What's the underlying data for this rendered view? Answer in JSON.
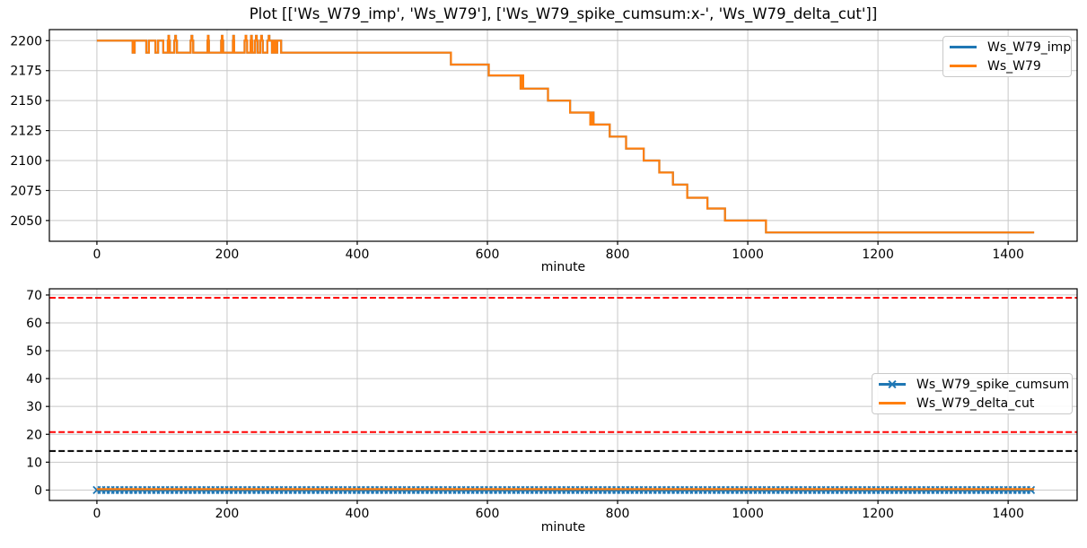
{
  "title": "Plot [['Ws_W79_imp', 'Ws_W79'], ['Ws_W79_spike_cumsum:x-', 'Ws_W79_delta_cut']]",
  "colors": {
    "blue": "#1f77b4",
    "orange": "#ff7f0e",
    "red": "#ff0000",
    "black": "#000000",
    "grid": "#c8c8c8",
    "axis": "#000000",
    "text": "#000000"
  },
  "chart_data": [
    {
      "type": "line",
      "title": "",
      "xlabel": "minute",
      "ylabel": "",
      "xlim": [
        -73,
        1506
      ],
      "ylim": [
        2032.7,
        2209.2
      ],
      "xticks": [
        0,
        200,
        400,
        600,
        800,
        1000,
        1200,
        1400
      ],
      "yticks": [
        2050,
        2075,
        2100,
        2125,
        2150,
        2175,
        2200
      ],
      "grid": true,
      "legend_position": "upper right",
      "series": [
        {
          "name": "Ws_W79_imp",
          "color": "#1f77b4",
          "linewidth": 2.2,
          "points_same_as": "Ws_W79"
        },
        {
          "name": "Ws_W79",
          "color": "#ff7f0e",
          "linewidth": 2.2,
          "points": [
            [
              0,
              2200
            ],
            [
              55,
              2200
            ],
            [
              55,
              2190
            ],
            [
              58,
              2190
            ],
            [
              58,
              2200
            ],
            [
              76,
              2200
            ],
            [
              76,
              2190
            ],
            [
              80,
              2190
            ],
            [
              80,
              2200
            ],
            [
              90,
              2200
            ],
            [
              90,
              2190
            ],
            [
              94,
              2190
            ],
            [
              94,
              2200
            ],
            [
              102,
              2200
            ],
            [
              102,
              2190
            ],
            [
              109,
              2190
            ],
            [
              109,
              2200
            ],
            [
              110,
              2200
            ],
            [
              110,
              2204
            ],
            [
              111,
              2204
            ],
            [
              111,
              2200
            ],
            [
              112,
              2200
            ],
            [
              112,
              2190
            ],
            [
              119,
              2190
            ],
            [
              119,
              2200
            ],
            [
              120.5,
              2200
            ],
            [
              120.5,
              2204
            ],
            [
              121.5,
              2204
            ],
            [
              121.5,
              2200
            ],
            [
              123,
              2200
            ],
            [
              123,
              2190
            ],
            [
              144,
              2190
            ],
            [
              144,
              2200
            ],
            [
              145.5,
              2200
            ],
            [
              145.5,
              2204
            ],
            [
              146.5,
              2204
            ],
            [
              146.5,
              2200
            ],
            [
              148,
              2200
            ],
            [
              148,
              2190
            ],
            [
              170,
              2190
            ],
            [
              170,
              2200
            ],
            [
              170.5,
              2200
            ],
            [
              170.5,
              2204
            ],
            [
              171.5,
              2204
            ],
            [
              171.5,
              2200
            ],
            [
              172,
              2200
            ],
            [
              172,
              2190
            ],
            [
              191,
              2190
            ],
            [
              191,
              2200
            ],
            [
              192,
              2200
            ],
            [
              192,
              2204
            ],
            [
              193,
              2204
            ],
            [
              193,
              2200
            ],
            [
              194,
              2200
            ],
            [
              194,
              2190
            ],
            [
              209,
              2190
            ],
            [
              209,
              2200
            ],
            [
              209.5,
              2200
            ],
            [
              209.5,
              2204
            ],
            [
              210.5,
              2204
            ],
            [
              210.5,
              2200
            ],
            [
              211,
              2200
            ],
            [
              211,
              2190
            ],
            [
              227,
              2190
            ],
            [
              227,
              2200
            ],
            [
              228.5,
              2200
            ],
            [
              228.5,
              2204
            ],
            [
              229.5,
              2204
            ],
            [
              229.5,
              2200
            ],
            [
              231,
              2200
            ],
            [
              231,
              2190
            ],
            [
              236,
              2190
            ],
            [
              236,
              2200
            ],
            [
              237,
              2200
            ],
            [
              237,
              2204
            ],
            [
              238,
              2204
            ],
            [
              238,
              2200
            ],
            [
              239,
              2200
            ],
            [
              239,
              2190
            ],
            [
              243,
              2190
            ],
            [
              243,
              2200
            ],
            [
              244.5,
              2200
            ],
            [
              244.5,
              2204
            ],
            [
              245.5,
              2204
            ],
            [
              245.5,
              2200
            ],
            [
              247,
              2200
            ],
            [
              247,
              2190
            ],
            [
              251,
              2190
            ],
            [
              251,
              2200
            ],
            [
              252.5,
              2200
            ],
            [
              252.5,
              2204
            ],
            [
              253.5,
              2204
            ],
            [
              253.5,
              2200
            ],
            [
              255,
              2200
            ],
            [
              255,
              2190
            ],
            [
              262,
              2190
            ],
            [
              262,
              2200
            ],
            [
              264,
              2200
            ],
            [
              264,
              2204
            ],
            [
              265,
              2204
            ],
            [
              265,
              2200
            ],
            [
              269,
              2200
            ],
            [
              269,
              2190
            ],
            [
              272,
              2190
            ],
            [
              272,
              2200
            ],
            [
              274,
              2200
            ],
            [
              274,
              2190
            ],
            [
              277,
              2190
            ],
            [
              277,
              2200
            ],
            [
              283,
              2200
            ],
            [
              283,
              2190
            ],
            [
              544,
              2190
            ],
            [
              544,
              2180
            ],
            [
              602,
              2180
            ],
            [
              602,
              2171
            ],
            [
              651,
              2171
            ],
            [
              651,
              2160
            ],
            [
              653,
              2160
            ],
            [
              653,
              2171
            ],
            [
              655,
              2171
            ],
            [
              655,
              2160
            ],
            [
              693,
              2160
            ],
            [
              693,
              2150
            ],
            [
              727,
              2150
            ],
            [
              727,
              2140
            ],
            [
              758,
              2140
            ],
            [
              758,
              2130
            ],
            [
              761,
              2130
            ],
            [
              761,
              2140
            ],
            [
              763,
              2140
            ],
            [
              763,
              2130
            ],
            [
              788,
              2130
            ],
            [
              788,
              2120
            ],
            [
              813,
              2120
            ],
            [
              813,
              2110
            ],
            [
              840,
              2110
            ],
            [
              840,
              2100
            ],
            [
              864,
              2100
            ],
            [
              864,
              2090
            ],
            [
              885,
              2090
            ],
            [
              885,
              2080
            ],
            [
              907,
              2080
            ],
            [
              907,
              2069
            ],
            [
              938,
              2069
            ],
            [
              938,
              2060
            ],
            [
              965,
              2060
            ],
            [
              965,
              2050
            ],
            [
              1028,
              2050
            ],
            [
              1028,
              2040
            ],
            [
              1440,
              2040
            ]
          ]
        }
      ]
    },
    {
      "type": "line",
      "title": "",
      "xlabel": "minute",
      "ylabel": "",
      "xlim": [
        -73,
        1506
      ],
      "ylim": [
        -3.74,
        72.23
      ],
      "xticks": [
        0,
        200,
        400,
        600,
        800,
        1000,
        1200,
        1400
      ],
      "yticks": [
        0,
        10,
        20,
        30,
        40,
        50,
        60,
        70
      ],
      "grid": true,
      "legend_position": "center right",
      "series": [
        {
          "name": "Ws_W79_spike_cumsum",
          "color": "#1f77b4",
          "marker": "x",
          "linewidth": 2.2,
          "points": [
            [
              0,
              0
            ],
            [
              1440,
              0
            ]
          ]
        },
        {
          "name": "Ws_W79_delta_cut",
          "color": "#ff7f0e",
          "linewidth": 2.2,
          "points": [
            [
              0,
              0.3
            ],
            [
              1440,
              0.3
            ]
          ]
        }
      ],
      "hlines": [
        {
          "y": 69,
          "color": "#ff0000",
          "style": "dashed"
        },
        {
          "y": 20.8,
          "color": "#ff0000",
          "style": "dashed"
        },
        {
          "y": 14,
          "color": "#000000",
          "style": "dashed"
        }
      ]
    }
  ]
}
